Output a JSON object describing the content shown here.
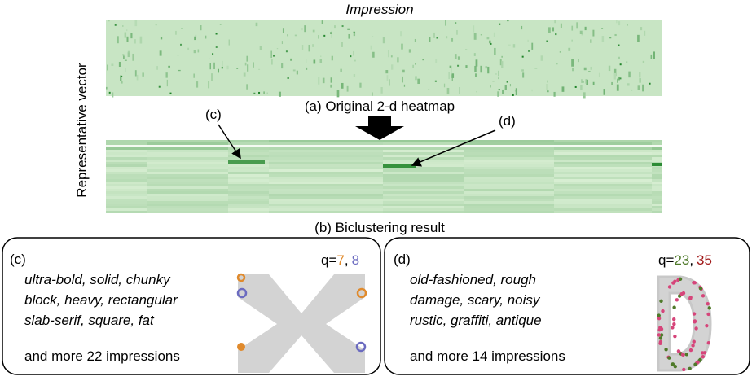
{
  "figure": {
    "heatmap_a": {
      "top_label": "Impression",
      "caption": "(a) Original 2-d heatmap"
    },
    "side_label": "Representative vector",
    "heatmap_b": {
      "caption": "(b) Biclustering result",
      "pointer_c": "(c)",
      "pointer_d": "(d)"
    },
    "panels": [
      {
        "label": "(c)",
        "q_prefix": "q=",
        "q_values": [
          "7",
          "8"
        ],
        "q_separator": ",",
        "lines": [
          "ultra-bold, solid, chunky",
          "block, heavy, rectangular",
          "slab-serif, square, fat"
        ],
        "more": "and more 22 impressions"
      },
      {
        "label": "(d)",
        "q_prefix": "q=",
        "q_values": [
          "23",
          "35"
        ],
        "q_separator": ",",
        "lines": [
          "old-fashioned, rough",
          "damage, scary, noisy",
          "rustic, graffiti, antique"
        ],
        "more": "and more 14 impressions"
      }
    ]
  }
}
